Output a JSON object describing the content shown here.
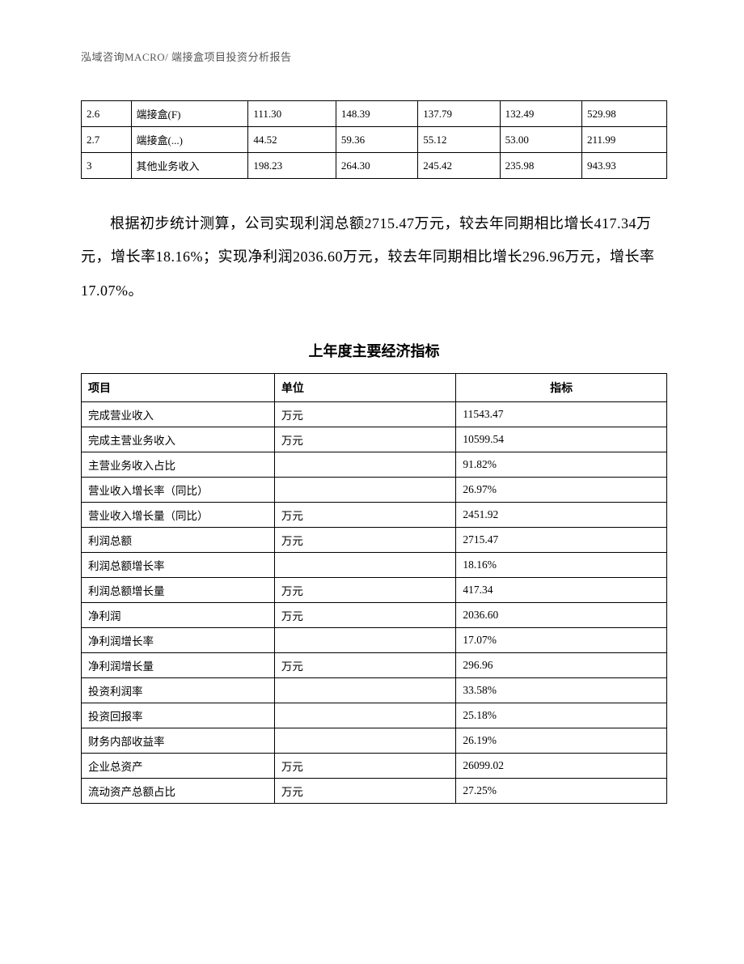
{
  "header": "泓域咨询MACRO/    端接盒项目投资分析报告",
  "top_table": {
    "rows": [
      [
        "2.6",
        "端接盒(F)",
        "111.30",
        "148.39",
        "137.79",
        "132.49",
        "529.98"
      ],
      [
        "2.7",
        "端接盒(...)",
        "44.52",
        "59.36",
        "55.12",
        "53.00",
        "211.99"
      ],
      [
        "3",
        "其他业务收入",
        "198.23",
        "264.30",
        "245.42",
        "235.98",
        "943.93"
      ]
    ],
    "col_widths": [
      "8.5%",
      "20%",
      "15%",
      "14%",
      "14%",
      "14%",
      "14.5%"
    ],
    "border_color": "#000000",
    "font_size": 13
  },
  "paragraph": "根据初步统计测算，公司实现利润总额2715.47万元，较去年同期相比增长417.34万元，增长率18.16%；实现净利润2036.60万元，较去年同期相比增长296.96万元，增长率17.07%。",
  "section_title": "上年度主要经济指标",
  "main_table": {
    "columns": [
      "项目",
      "单位",
      "指标"
    ],
    "col_align": [
      "left",
      "left",
      "center"
    ],
    "col_widths": [
      "33%",
      "31%",
      "36%"
    ],
    "rows": [
      [
        "完成营业收入",
        "万元",
        "11543.47"
      ],
      [
        "完成主营业务收入",
        "万元",
        "10599.54"
      ],
      [
        "主营业务收入占比",
        "",
        "91.82%"
      ],
      [
        "营业收入增长率（同比）",
        "",
        "26.97%"
      ],
      [
        "营业收入增长量（同比）",
        "万元",
        "2451.92"
      ],
      [
        "利润总额",
        "万元",
        "2715.47"
      ],
      [
        "利润总额增长率",
        "",
        "18.16%"
      ],
      [
        "利润总额增长量",
        "万元",
        "417.34"
      ],
      [
        "净利润",
        "万元",
        "2036.60"
      ],
      [
        "净利润增长率",
        "",
        "17.07%"
      ],
      [
        "净利润增长量",
        "万元",
        "296.96"
      ],
      [
        "投资利润率",
        "",
        "33.58%"
      ],
      [
        "投资回报率",
        "",
        "25.18%"
      ],
      [
        "财务内部收益率",
        "",
        "26.19%"
      ],
      [
        "企业总资产",
        "万元",
        "26099.02"
      ],
      [
        "流动资产总额占比",
        "万元",
        "27.25%"
      ]
    ],
    "border_color": "#000000",
    "header_font_size": 14,
    "cell_font_size": 13.5
  },
  "colors": {
    "background": "#ffffff",
    "text": "#000000",
    "header_text": "#555555",
    "border": "#000000"
  }
}
